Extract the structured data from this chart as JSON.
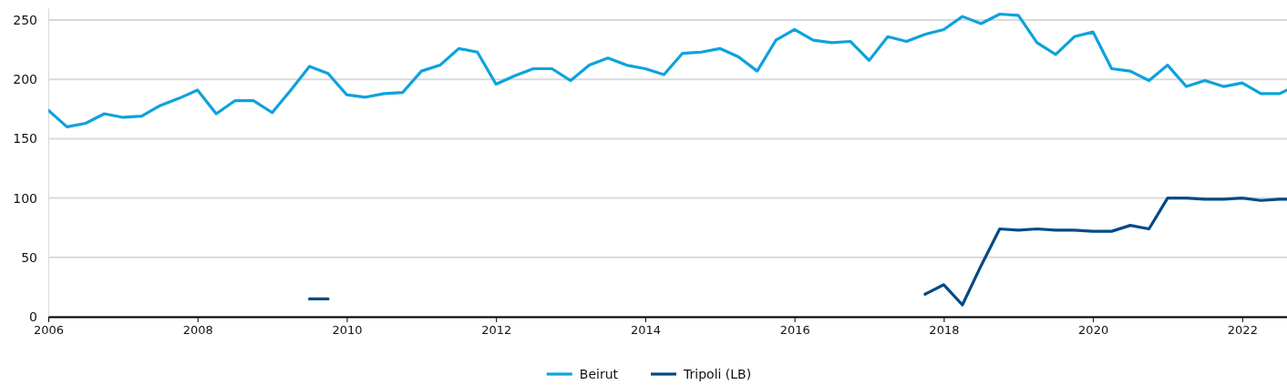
{
  "chart_data": {
    "type": "line",
    "x": [
      2006,
      2006.25,
      2006.5,
      2006.75,
      2007,
      2007.25,
      2007.5,
      2007.75,
      2008,
      2008.25,
      2008.5,
      2008.75,
      2009,
      2009.25,
      2009.5,
      2009.75,
      2010,
      2010.25,
      2010.5,
      2010.75,
      2011,
      2011.25,
      2011.5,
      2011.75,
      2012,
      2012.25,
      2012.5,
      2012.75,
      2013,
      2013.25,
      2013.5,
      2013.75,
      2014,
      2014.25,
      2014.5,
      2014.75,
      2015,
      2015.25,
      2015.5,
      2015.75,
      2016,
      2016.25,
      2016.5,
      2016.75,
      2017,
      2017.25,
      2017.5,
      2017.75,
      2018,
      2018.25,
      2018.5,
      2018.75,
      2019,
      2019.25,
      2019.5,
      2019.75,
      2020,
      2020.25,
      2020.5,
      2020.75,
      2021,
      2021.25,
      2021.5,
      2021.75,
      2022,
      2022.25,
      2022.5,
      2022.6
    ],
    "series": [
      {
        "name": "Beirut",
        "color": "#0ea2dc",
        "values": [
          174,
          160,
          163,
          171,
          168,
          169,
          178,
          184,
          191,
          171,
          182,
          182,
          172,
          191,
          211,
          205,
          187,
          185,
          188,
          189,
          207,
          212,
          226,
          223,
          196,
          203,
          209,
          209,
          199,
          212,
          218,
          212,
          209,
          204,
          222,
          223,
          226,
          219,
          207,
          233,
          242,
          233,
          231,
          232,
          216,
          236,
          232,
          238,
          242,
          253,
          247,
          255,
          254,
          231,
          221,
          236,
          240,
          209,
          207,
          199,
          212,
          194,
          199,
          194,
          197,
          188,
          188,
          191
        ]
      },
      {
        "name": "Tripoli (LB)",
        "color": "#004a87",
        "values": [
          null,
          null,
          null,
          null,
          null,
          null,
          null,
          null,
          null,
          null,
          null,
          null,
          null,
          null,
          15,
          15,
          null,
          null,
          null,
          null,
          null,
          null,
          null,
          null,
          null,
          null,
          null,
          null,
          null,
          null,
          null,
          null,
          null,
          null,
          null,
          null,
          null,
          null,
          null,
          null,
          null,
          null,
          null,
          null,
          null,
          null,
          null,
          19,
          27,
          10,
          43,
          74,
          73,
          74,
          73,
          73,
          72,
          72,
          77,
          74,
          100,
          100,
          99,
          99,
          100,
          98,
          99,
          99
        ]
      }
    ],
    "xlim": [
      2006,
      2022.6
    ],
    "xticks": [
      2006,
      2008,
      2010,
      2012,
      2014,
      2016,
      2018,
      2020,
      2022
    ],
    "ylim": [
      0,
      260
    ],
    "yticks": [
      0,
      50,
      100,
      150,
      200,
      250
    ],
    "grid": "y",
    "legend": "bottom",
    "marker": "none",
    "line_style": "solid"
  }
}
